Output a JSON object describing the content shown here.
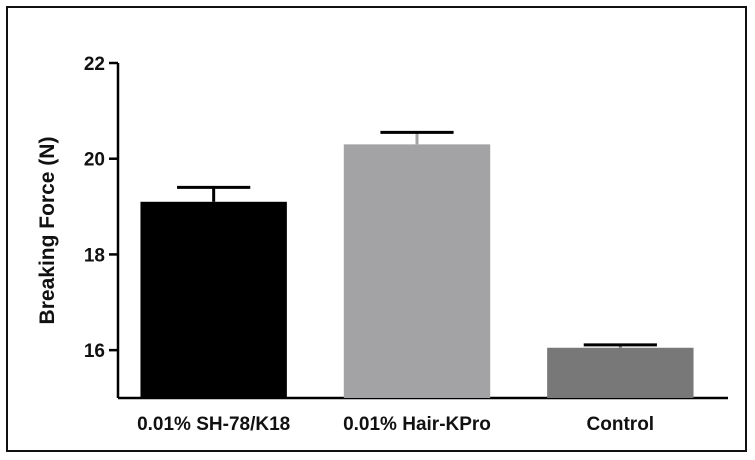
{
  "chart_data": {
    "type": "bar",
    "title": "",
    "xlabel": "",
    "ylabel": "Breaking Force (N)",
    "categories": [
      "0.01% SH-78/K18",
      "0.01% Hair-KPro",
      "Control"
    ],
    "values": [
      19.1,
      20.3,
      16.05
    ],
    "errors": [
      0.3,
      0.25,
      0.06
    ],
    "ylim": [
      15,
      22
    ],
    "yticks": [
      16,
      18,
      20,
      22
    ],
    "grid": false,
    "legend": "none",
    "colors": [
      "#000000",
      "#a3a3a5",
      "#787878"
    ],
    "axis_color": "#000000"
  }
}
